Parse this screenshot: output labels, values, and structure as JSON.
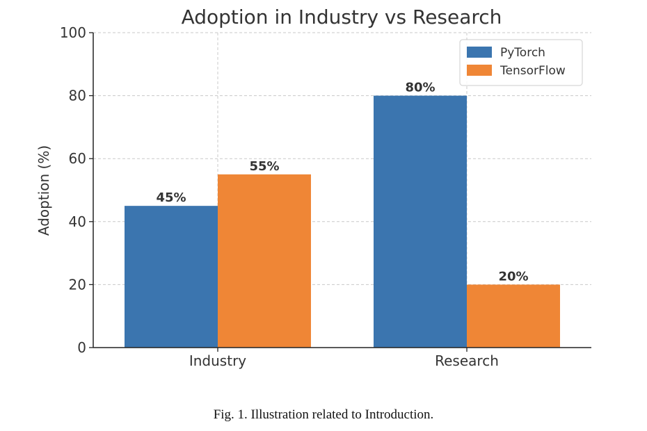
{
  "chart_data": {
    "type": "bar",
    "title": "Adoption in Industry vs Research",
    "xlabel": "",
    "ylabel": "Adoption (%)",
    "categories": [
      "Industry",
      "Research"
    ],
    "series": [
      {
        "name": "PyTorch",
        "values": [
          45,
          80
        ],
        "labels": [
          "45%",
          "80%"
        ],
        "color": "#3b75af"
      },
      {
        "name": "TensorFlow",
        "values": [
          55,
          20
        ],
        "labels": [
          "55%",
          "20%"
        ],
        "color": "#ef8636"
      }
    ],
    "ylim": [
      0,
      100
    ],
    "yticks": [
      0,
      20,
      40,
      60,
      80,
      100
    ],
    "grid": true,
    "legend_position": "top-right"
  },
  "caption": "Fig. 1.  Illustration related to Introduction."
}
